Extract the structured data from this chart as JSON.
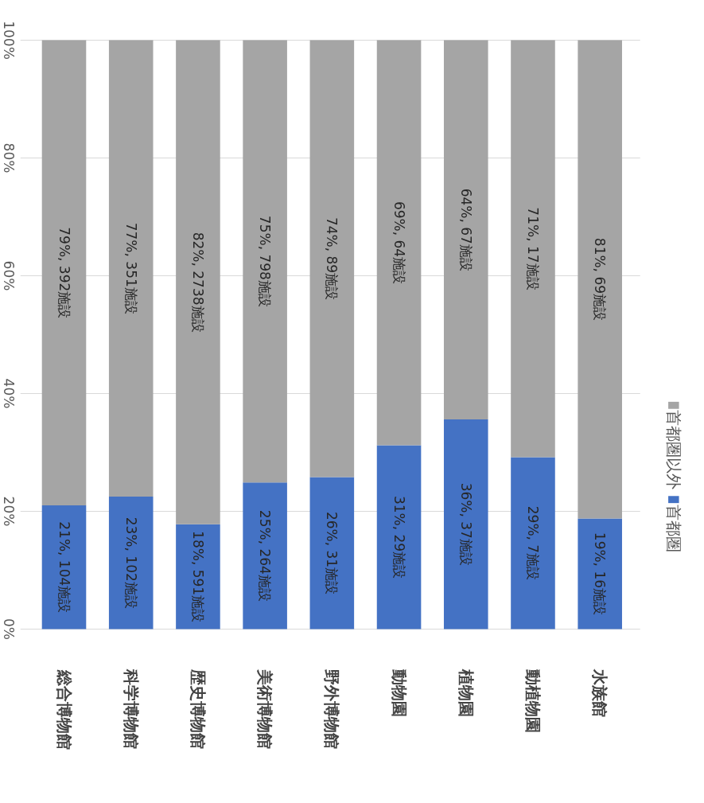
{
  "chart_data": {
    "type": "bar",
    "stacked": true,
    "categories": [
      "総合博物館",
      "科学博物館",
      "歴史博物館",
      "美術博物館",
      "野外博物館",
      "動物園",
      "植物園",
      "動植物園",
      "水族館"
    ],
    "series": [
      {
        "name": "首都圏",
        "color": "#4472c4",
        "values": [
          21.0,
          22.5,
          17.8,
          24.9,
          25.8,
          31.2,
          35.6,
          29.2,
          18.8
        ],
        "value_labels": [
          "21%, 104施設",
          "23%, 102施設",
          "18%, 591施設",
          "25%, 264施設",
          "26%, 31施設",
          "31%, 29施設",
          "36%, 37施設",
          "29%, 7施設",
          "19%, 16施設"
        ]
      },
      {
        "name": "首都圏以外",
        "color": "#a5a5a5",
        "values": [
          79.0,
          77.5,
          82.2,
          75.1,
          74.2,
          68.8,
          64.4,
          70.8,
          81.2
        ],
        "value_labels": [
          "79%, 392施設",
          "77%, 351施設",
          "82%, 2738施設",
          "75%, 798施設",
          "74%, 89施設",
          "69%, 64施設",
          "64%, 67施設",
          "71%, 17施設",
          "81%, 69施設"
        ]
      }
    ],
    "ylim": [
      0,
      100
    ],
    "yticks": [
      {
        "value": 0,
        "label": "0%"
      },
      {
        "value": 20,
        "label": "20%"
      },
      {
        "value": 40,
        "label": "40%"
      },
      {
        "value": 60,
        "label": "60%"
      },
      {
        "value": 80,
        "label": "80%"
      },
      {
        "value": 100,
        "label": "100%"
      }
    ],
    "grid": "y",
    "legend": "right"
  }
}
